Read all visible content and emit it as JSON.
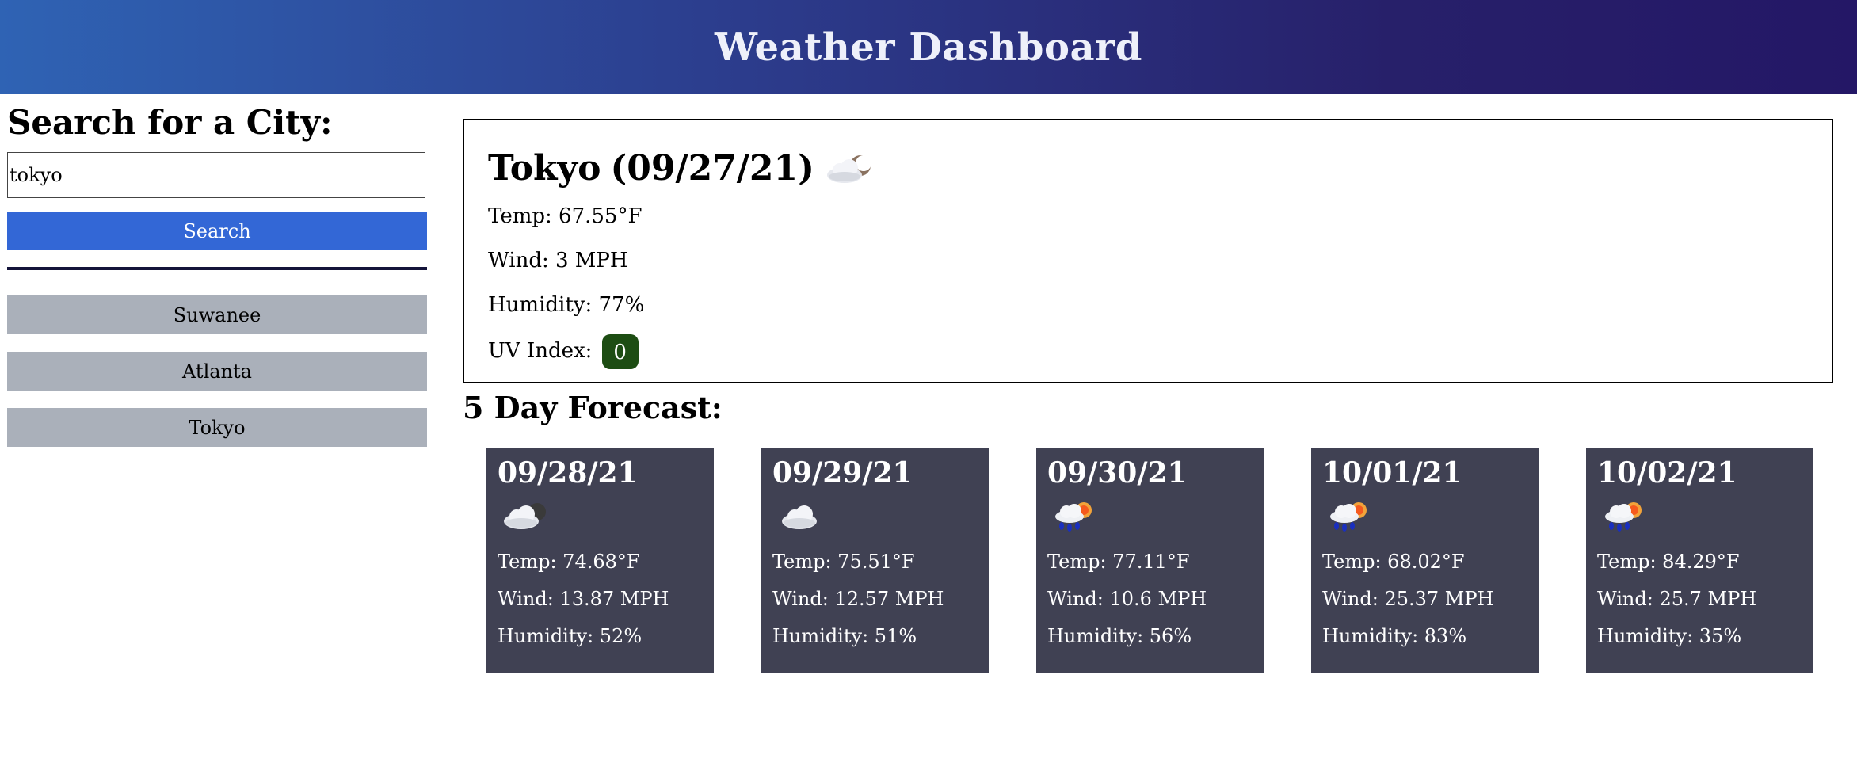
{
  "header": {
    "title": "Weather Dashboard"
  },
  "sidebar": {
    "heading": "Search for a City:",
    "search_value": "tokyo",
    "search_button": "Search",
    "history": [
      "Suwanee",
      "Atlanta",
      "Tokyo"
    ]
  },
  "current": {
    "city": "Tokyo",
    "date": "(09/27/21)",
    "icon": "partly-cloudy-night-icon",
    "temp": "Temp: 67.55°F",
    "wind": "Wind: 3 MPH",
    "humidity": "Humidity: 77%",
    "uv_label": "UV Index:",
    "uv_value": "0",
    "uv_color": "#1d4d13"
  },
  "forecast": {
    "title": "5 Day Forecast:",
    "days": [
      {
        "date": "09/28/21",
        "icon": "partly-cloudy-night-icon",
        "temp": "Temp: 74.68°F",
        "wind": "Wind: 13.87 MPH",
        "humidity": "Humidity: 52%"
      },
      {
        "date": "09/29/21",
        "icon": "cloud-icon",
        "temp": "Temp: 75.51°F",
        "wind": "Wind: 12.57 MPH",
        "humidity": "Humidity: 51%"
      },
      {
        "date": "09/30/21",
        "icon": "sun-rain-cloud-icon",
        "temp": "Temp: 77.11°F",
        "wind": "Wind: 10.6 MPH",
        "humidity": "Humidity: 56%"
      },
      {
        "date": "10/01/21",
        "icon": "sun-rain-cloud-icon",
        "temp": "Temp: 68.02°F",
        "wind": "Wind: 25.37 MPH",
        "humidity": "Humidity: 83%"
      },
      {
        "date": "10/02/21",
        "icon": "sun-rain-cloud-icon",
        "temp": "Temp: 84.29°F",
        "wind": "Wind: 25.7 MPH",
        "humidity": "Humidity: 35%"
      }
    ]
  },
  "colors": {
    "accent": "#3367d6",
    "card": "#404153",
    "history_button": "#aab0ba"
  }
}
